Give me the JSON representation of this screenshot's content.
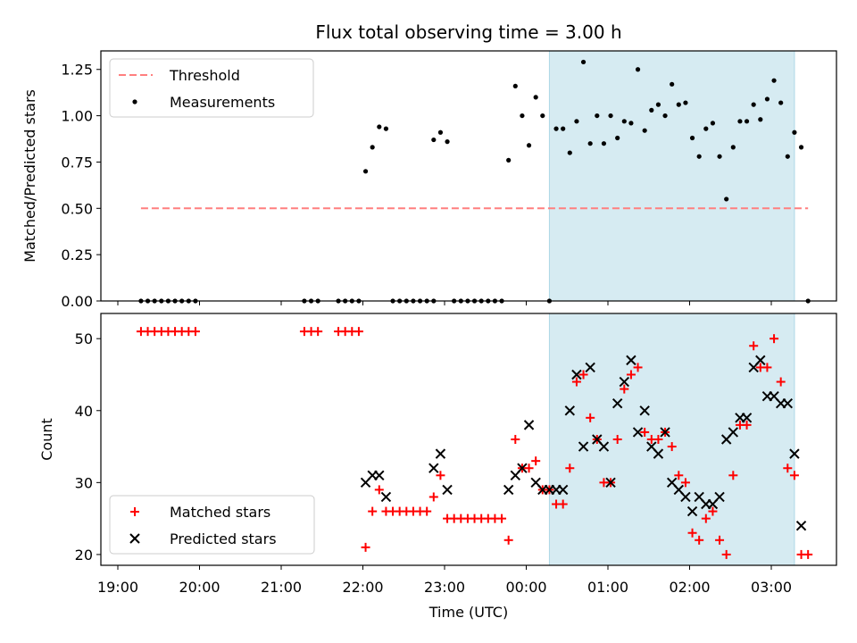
{
  "chart_data": {
    "title": "Flux total observing time = 3.00 h",
    "xlabel": "Time (UTC)",
    "x_ticks": [
      "19:00",
      "20:00",
      "21:00",
      "22:00",
      "23:00",
      "00:00",
      "01:00",
      "02:00",
      "03:00"
    ],
    "shaded_interval": {
      "start": "00:17",
      "end": "03:17",
      "color": "#add8e6"
    },
    "panels": [
      {
        "type": "scatter",
        "ylabel": "Matched/Predicted stars",
        "ylim": [
          0,
          1.35
        ],
        "y_ticks": [
          "0.00",
          "0.25",
          "0.50",
          "0.75",
          "1.00",
          "1.25"
        ],
        "legend": {
          "placement": "top-left",
          "entries": [
            "Threshold",
            "Measurements"
          ]
        },
        "series": [
          {
            "name": "Threshold",
            "kind": "dashed-line",
            "color": "#ff7f7f",
            "points": [
              [
                "19:17",
                0.5
              ],
              [
                "03:27",
                0.5
              ]
            ]
          },
          {
            "name": "Measurements",
            "kind": "dot",
            "color": "#000000",
            "points": [
              [
                "19:17",
                0
              ],
              [
                "19:22",
                0
              ],
              [
                "19:27",
                0
              ],
              [
                "19:32",
                0
              ],
              [
                "19:37",
                0
              ],
              [
                "19:42",
                0
              ],
              [
                "19:47",
                0
              ],
              [
                "19:52",
                0
              ],
              [
                "19:57",
                0
              ],
              [
                "21:17",
                0
              ],
              [
                "21:22",
                0
              ],
              [
                "21:27",
                0
              ],
              [
                "21:42",
                0
              ],
              [
                "21:47",
                0
              ],
              [
                "21:52",
                0
              ],
              [
                "21:57",
                0
              ],
              [
                "22:02",
                0.7
              ],
              [
                "22:07",
                0.83
              ],
              [
                "22:12",
                0.94
              ],
              [
                "22:17",
                0.93
              ],
              [
                "22:22",
                0
              ],
              [
                "22:27",
                0
              ],
              [
                "22:32",
                0
              ],
              [
                "22:37",
                0
              ],
              [
                "22:42",
                0
              ],
              [
                "22:47",
                0
              ],
              [
                "22:52",
                0
              ],
              [
                "22:52",
                0.87
              ],
              [
                "22:57",
                0.91
              ],
              [
                "23:02",
                0.86
              ],
              [
                "23:07",
                0
              ],
              [
                "23:12",
                0
              ],
              [
                "23:17",
                0
              ],
              [
                "23:22",
                0
              ],
              [
                "23:27",
                0
              ],
              [
                "23:32",
                0
              ],
              [
                "23:37",
                0
              ],
              [
                "23:42",
                0
              ],
              [
                "23:47",
                0.76
              ],
              [
                "23:52",
                1.16
              ],
              [
                "23:57",
                1.0
              ],
              [
                "00:02",
                0.84
              ],
              [
                "00:07",
                1.1
              ],
              [
                "00:12",
                1.0
              ],
              [
                "00:17",
                0
              ],
              [
                "00:22",
                0.93
              ],
              [
                "00:27",
                0.93
              ],
              [
                "00:32",
                0.8
              ],
              [
                "00:37",
                0.97
              ],
              [
                "00:42",
                1.29
              ],
              [
                "00:47",
                0.85
              ],
              [
                "00:52",
                1.0
              ],
              [
                "00:57",
                0.85
              ],
              [
                "01:02",
                1.0
              ],
              [
                "01:07",
                0.88
              ],
              [
                "01:12",
                0.97
              ],
              [
                "01:17",
                0.96
              ],
              [
                "01:22",
                1.25
              ],
              [
                "01:27",
                0.92
              ],
              [
                "01:32",
                1.03
              ],
              [
                "01:37",
                1.06
              ],
              [
                "01:42",
                1.0
              ],
              [
                "01:47",
                1.17
              ],
              [
                "01:52",
                1.06
              ],
              [
                "01:57",
                1.07
              ],
              [
                "02:02",
                0.88
              ],
              [
                "02:07",
                0.78
              ],
              [
                "02:12",
                0.93
              ],
              [
                "02:17",
                0.96
              ],
              [
                "02:22",
                0.78
              ],
              [
                "02:27",
                0.55
              ],
              [
                "02:32",
                0.83
              ],
              [
                "02:37",
                0.97
              ],
              [
                "02:42",
                0.97
              ],
              [
                "02:47",
                1.06
              ],
              [
                "02:52",
                0.98
              ],
              [
                "02:57",
                1.09
              ],
              [
                "03:02",
                1.19
              ],
              [
                "03:07",
                1.07
              ],
              [
                "03:12",
                0.78
              ],
              [
                "03:17",
                0.91
              ],
              [
                "03:22",
                0.83
              ],
              [
                "03:27",
                0
              ]
            ]
          }
        ]
      },
      {
        "type": "scatter",
        "ylabel": "Count",
        "ylim": [
          18.5,
          53.5
        ],
        "y_ticks": [
          "20",
          "30",
          "40",
          "50"
        ],
        "legend": {
          "placement": "bottom-left",
          "entries": [
            "Matched stars",
            "Predicted stars"
          ]
        },
        "series": [
          {
            "name": "Matched stars",
            "kind": "plus",
            "color": "#ff0000",
            "points": [
              [
                "19:17",
                51
              ],
              [
                "19:22",
                51
              ],
              [
                "19:27",
                51
              ],
              [
                "19:32",
                51
              ],
              [
                "19:37",
                51
              ],
              [
                "19:42",
                51
              ],
              [
                "19:47",
                51
              ],
              [
                "19:52",
                51
              ],
              [
                "19:57",
                51
              ],
              [
                "21:17",
                51
              ],
              [
                "21:22",
                51
              ],
              [
                "21:27",
                51
              ],
              [
                "21:42",
                51
              ],
              [
                "21:47",
                51
              ],
              [
                "21:52",
                51
              ],
              [
                "21:57",
                51
              ],
              [
                "22:02",
                21
              ],
              [
                "22:07",
                26
              ],
              [
                "22:12",
                29
              ],
              [
                "22:17",
                26
              ],
              [
                "22:22",
                26
              ],
              [
                "22:27",
                26
              ],
              [
                "22:32",
                26
              ],
              [
                "22:37",
                26
              ],
              [
                "22:42",
                26
              ],
              [
                "22:47",
                26
              ],
              [
                "22:52",
                28
              ],
              [
                "22:57",
                31
              ],
              [
                "23:02",
                25
              ],
              [
                "23:07",
                25
              ],
              [
                "23:12",
                25
              ],
              [
                "23:17",
                25
              ],
              [
                "23:22",
                25
              ],
              [
                "23:27",
                25
              ],
              [
                "23:32",
                25
              ],
              [
                "23:37",
                25
              ],
              [
                "23:42",
                25
              ],
              [
                "23:47",
                22
              ],
              [
                "23:52",
                36
              ],
              [
                "23:57",
                32
              ],
              [
                "00:02",
                32
              ],
              [
                "00:07",
                33
              ],
              [
                "00:12",
                29
              ],
              [
                "00:17",
                29
              ],
              [
                "00:22",
                27
              ],
              [
                "00:27",
                27
              ],
              [
                "00:32",
                32
              ],
              [
                "00:37",
                44
              ],
              [
                "00:42",
                45
              ],
              [
                "00:47",
                39
              ],
              [
                "00:52",
                36
              ],
              [
                "00:57",
                30
              ],
              [
                "01:02",
                30
              ],
              [
                "01:07",
                36
              ],
              [
                "01:12",
                43
              ],
              [
                "01:17",
                45
              ],
              [
                "01:22",
                46
              ],
              [
                "01:27",
                37
              ],
              [
                "01:32",
                36
              ],
              [
                "01:37",
                36
              ],
              [
                "01:42",
                37
              ],
              [
                "01:47",
                35
              ],
              [
                "01:52",
                31
              ],
              [
                "01:57",
                30
              ],
              [
                "02:02",
                23
              ],
              [
                "02:07",
                22
              ],
              [
                "02:12",
                25
              ],
              [
                "02:17",
                26
              ],
              [
                "02:22",
                22
              ],
              [
                "02:27",
                20
              ],
              [
                "02:32",
                31
              ],
              [
                "02:37",
                38
              ],
              [
                "02:42",
                38
              ],
              [
                "02:47",
                49
              ],
              [
                "02:52",
                46
              ],
              [
                "02:57",
                46
              ],
              [
                "03:02",
                50
              ],
              [
                "03:07",
                44
              ],
              [
                "03:12",
                32
              ],
              [
                "03:17",
                31
              ],
              [
                "03:22",
                20
              ],
              [
                "03:27",
                20
              ]
            ]
          },
          {
            "name": "Predicted stars",
            "kind": "x",
            "color": "#000000",
            "points": [
              [
                "22:02",
                30
              ],
              [
                "22:07",
                31
              ],
              [
                "22:12",
                31
              ],
              [
                "22:17",
                28
              ],
              [
                "22:52",
                32
              ],
              [
                "22:57",
                34
              ],
              [
                "23:02",
                29
              ],
              [
                "23:47",
                29
              ],
              [
                "23:52",
                31
              ],
              [
                "23:57",
                32
              ],
              [
                "00:02",
                38
              ],
              [
                "00:07",
                30
              ],
              [
                "00:12",
                29
              ],
              [
                "00:17",
                29
              ],
              [
                "00:22",
                29
              ],
              [
                "00:27",
                29
              ],
              [
                "00:32",
                40
              ],
              [
                "00:37",
                45
              ],
              [
                "00:42",
                35
              ],
              [
                "00:47",
                46
              ],
              [
                "00:52",
                36
              ],
              [
                "00:57",
                35
              ],
              [
                "01:02",
                30
              ],
              [
                "01:07",
                41
              ],
              [
                "01:12",
                44
              ],
              [
                "01:17",
                47
              ],
              [
                "01:22",
                37
              ],
              [
                "01:27",
                40
              ],
              [
                "01:32",
                35
              ],
              [
                "01:37",
                34
              ],
              [
                "01:42",
                37
              ],
              [
                "01:47",
                30
              ],
              [
                "01:52",
                29
              ],
              [
                "01:57",
                28
              ],
              [
                "02:02",
                26
              ],
              [
                "02:07",
                28
              ],
              [
                "02:12",
                27
              ],
              [
                "02:17",
                27
              ],
              [
                "02:22",
                28
              ],
              [
                "02:27",
                36
              ],
              [
                "02:32",
                37
              ],
              [
                "02:37",
                39
              ],
              [
                "02:42",
                39
              ],
              [
                "02:47",
                46
              ],
              [
                "02:52",
                47
              ],
              [
                "02:57",
                42
              ],
              [
                "03:02",
                42
              ],
              [
                "03:07",
                41
              ],
              [
                "03:12",
                41
              ],
              [
                "03:17",
                34
              ],
              [
                "03:22",
                24
              ]
            ]
          }
        ]
      }
    ]
  }
}
